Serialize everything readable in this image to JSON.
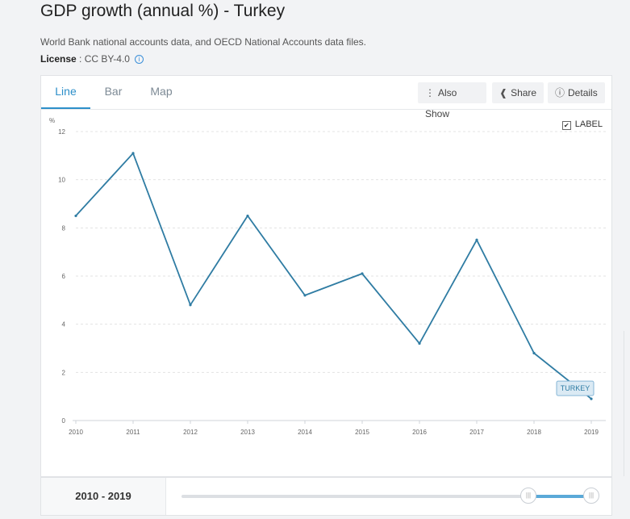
{
  "header": {
    "title": "GDP growth (annual %) - Turkey",
    "source": "World Bank national accounts data, and OECD National Accounts data files.",
    "license_label": "License",
    "license_sep": " : ",
    "license_value": "CC BY-4.0"
  },
  "tabs": [
    {
      "label": "Line",
      "active": true
    },
    {
      "label": "Bar",
      "active": false
    },
    {
      "label": "Map",
      "active": false
    }
  ],
  "toolbar": {
    "also_show": "Also Show",
    "share": "Share",
    "details": "Details"
  },
  "label_toggle": {
    "label": "LABEL",
    "checked": true
  },
  "range": {
    "start": "2010",
    "sep": " - ",
    "end": "2019"
  },
  "colors": {
    "line": "#2f7ca3",
    "accent": "#2d8fc9",
    "grid": "#e3e3e3"
  },
  "chart_data": {
    "type": "line",
    "title": "GDP growth (annual %) - Turkey",
    "ylabel": "%",
    "xlabel": "",
    "x": [
      "2010",
      "2011",
      "2012",
      "2013",
      "2014",
      "2015",
      "2016",
      "2017",
      "2018",
      "2019"
    ],
    "series": [
      {
        "name": "TURKEY",
        "values": [
          8.5,
          11.1,
          4.8,
          8.5,
          5.2,
          6.1,
          3.2,
          7.5,
          2.8,
          0.9
        ]
      }
    ],
    "yticks": [
      0,
      2,
      4,
      6,
      8,
      10,
      12
    ],
    "ylim": [
      0,
      12
    ],
    "grid": true,
    "series_label": "TURKEY"
  }
}
